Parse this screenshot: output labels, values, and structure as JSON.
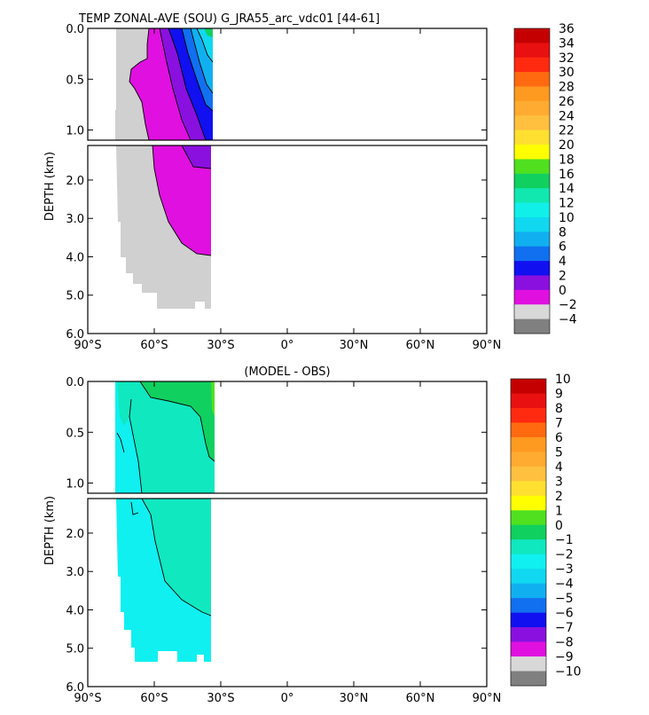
{
  "chart_data": [
    {
      "type": "heatmap",
      "title": "TEMP ZONAL-AVE (SOU) G_JRA55_arc_vdc01 [44-61]",
      "ylabel": "DEPTH (km)",
      "xlabel": "",
      "x_range": [
        -90,
        90
      ],
      "y_range": [
        0,
        6
      ],
      "y_break_at": 1.1,
      "upper_y_ticks": [
        {
          "v": 0.0,
          "label": "0.0"
        },
        {
          "v": 0.5,
          "label": "0.5"
        },
        {
          "v": 1.0,
          "label": "1.0"
        }
      ],
      "lower_y_ticks": [
        {
          "v": 2.0,
          "label": "2.0"
        },
        {
          "v": 3.0,
          "label": "3.0"
        },
        {
          "v": 4.0,
          "label": "4.0"
        },
        {
          "v": 5.0,
          "label": "5.0"
        },
        {
          "v": 6.0,
          "label": "6.0"
        }
      ],
      "x_ticks": [
        {
          "v": -90,
          "label": "90°S"
        },
        {
          "v": -60,
          "label": "60°S"
        },
        {
          "v": -30,
          "label": "30°S"
        },
        {
          "v": 0,
          "label": "0°"
        },
        {
          "v": 30,
          "label": "30°N"
        },
        {
          "v": 60,
          "label": "60°N"
        },
        {
          "v": 90,
          "label": "90°N"
        }
      ],
      "colorbar": {
        "labels": [
          "36",
          "34",
          "32",
          "30",
          "28",
          "26",
          "24",
          "22",
          "20",
          "18",
          "16",
          "14",
          "12",
          "10",
          "8",
          "6",
          "4",
          "2",
          "0",
          "−2",
          "−4"
        ],
        "colors": [
          "#c40000",
          "#e81010",
          "#ff2a10",
          "#ff6a10",
          "#ff9a20",
          "#ffaa30",
          "#ffc040",
          "#ffe030",
          "#ffff00",
          "#50e020",
          "#10d060",
          "#10e8b0",
          "#10f0e8",
          "#10d8f0",
          "#10b0f0",
          "#1070f0",
          "#1010f0",
          "#8a10e0",
          "#e010e0",
          "#d8d8d8",
          "#808080"
        ]
      },
      "regions": [
        {
          "name": "-2 to 0",
          "color": "#d0d0d0",
          "approx_extent": "78S-35S; upper ocean 0-1.1km west of 68S, deep ocean below the 0 contour down to ~5.4km"
        },
        {
          "name": "0 to 2",
          "color": "#e010e0",
          "approx_extent": "widening wedge from 68S (surface) to 35S, reaching ~4km at 35S"
        },
        {
          "name": "2 to 4",
          "color": "#8a10e0",
          "approx_extent": "narrow band 55S-35S, 0-1.3km"
        },
        {
          "name": "4 to 6",
          "color": "#1010f0",
          "approx_extent": "50S-35S, 0-1.0km"
        },
        {
          "name": "6 to 18",
          "color": "#10b0f0",
          "approx_extent": "near 35S, upper 0.8km"
        }
      ]
    },
    {
      "type": "heatmap",
      "title": "(MODEL - OBS)",
      "ylabel": "DEPTH (km)",
      "xlabel": "",
      "x_range": [
        -90,
        90
      ],
      "y_range": [
        0,
        6
      ],
      "y_break_at": 1.1,
      "upper_y_ticks": [
        {
          "v": 0.0,
          "label": "0.0"
        },
        {
          "v": 0.5,
          "label": "0.5"
        },
        {
          "v": 1.0,
          "label": "1.0"
        }
      ],
      "lower_y_ticks": [
        {
          "v": 2.0,
          "label": "2.0"
        },
        {
          "v": 3.0,
          "label": "3.0"
        },
        {
          "v": 4.0,
          "label": "4.0"
        },
        {
          "v": 5.0,
          "label": "5.0"
        },
        {
          "v": 6.0,
          "label": "6.0"
        }
      ],
      "x_ticks": [
        {
          "v": -90,
          "label": "90°S"
        },
        {
          "v": -60,
          "label": "60°S"
        },
        {
          "v": -30,
          "label": "30°S"
        },
        {
          "v": 0,
          "label": "0°"
        },
        {
          "v": 30,
          "label": "30°N"
        },
        {
          "v": 60,
          "label": "60°N"
        },
        {
          "v": 90,
          "label": "90°N"
        }
      ],
      "colorbar": {
        "labels": [
          "10",
          "9",
          "8",
          "7",
          "6",
          "5",
          "4",
          "3",
          "2",
          "1",
          "0",
          "−1",
          "−2",
          "−3",
          "−4",
          "−5",
          "−6",
          "−7",
          "−8",
          "−9",
          "−10"
        ],
        "colors": [
          "#c40000",
          "#e81010",
          "#ff2a10",
          "#ff6a10",
          "#ff9a20",
          "#ffaa30",
          "#ffc040",
          "#ffe030",
          "#ffff00",
          "#50e020",
          "#10d060",
          "#10e8c0",
          "#10f0f0",
          "#10d8f0",
          "#10b0f0",
          "#1070f0",
          "#1010f0",
          "#8a10e0",
          "#e010e0",
          "#d8d8d8",
          "#808080"
        ]
      },
      "regions": [
        {
          "name": "0 to 1",
          "color": "#10d060",
          "approx_extent": "surface 62S-35S, thickening to ~0.6km near 35S"
        },
        {
          "name": "-1 to 0",
          "color": "#10e8c0",
          "approx_extent": "most of 78S-35S from surface to ~4km"
        },
        {
          "name": "-2 to -1",
          "color": "#10f0f0",
          "approx_extent": "western edge 78S-68S and deep ocean below ~4km"
        }
      ]
    }
  ]
}
